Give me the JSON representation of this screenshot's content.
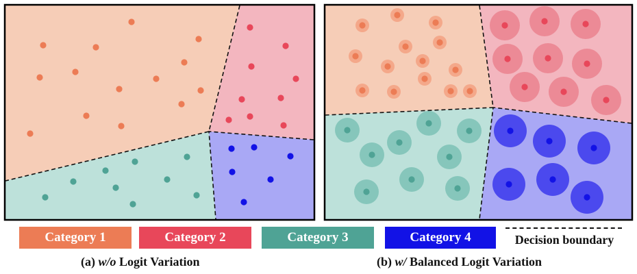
{
  "colors": {
    "category1": "#ec7c55",
    "category2": "#e8475a",
    "category3": "#4fa395",
    "category4": "#1212e6",
    "region1": "#f6cdb7",
    "region2": "#f3b6bf",
    "region3": "#bde1da",
    "region4": "#a9a8f5",
    "halo1": "#f4a88a",
    "halo2": "#ec8a96",
    "halo3": "#86c6bb",
    "halo4": "#4b49ee"
  },
  "legend": {
    "category1": "Category 1",
    "category2": "Category 2",
    "category3": "Category 3",
    "category4": "Category 4",
    "boundary": "Decision boundary"
  },
  "captions": {
    "a_prefix": "(a)",
    "a_italic": "w/o",
    "a_suffix": "Logit Variation",
    "b_prefix": "(b)",
    "b_italic": "w/",
    "b_suffix": "Balanced Logit Variation"
  }
}
